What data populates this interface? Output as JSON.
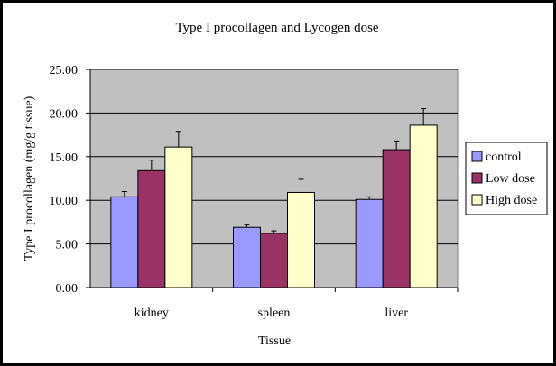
{
  "chart_data": {
    "type": "bar",
    "title": "Type I procollagen and Lycogen dose",
    "xlabel": "Tissue",
    "ylabel": "Type I procollagen (mg/g tissue)",
    "categories": [
      "kidney",
      "spleen",
      "liver"
    ],
    "ylim": [
      0,
      25
    ],
    "yticks": [
      "0.00",
      "5.00",
      "10.00",
      "15.00",
      "20.00",
      "25.00"
    ],
    "grid": true,
    "legend_position": "right",
    "series": [
      {
        "name": "control",
        "color": "#9999ff",
        "values": [
          10.4,
          6.9,
          10.1
        ],
        "errors": [
          0.6,
          0.3,
          0.3
        ]
      },
      {
        "name": "Low dose",
        "color": "#993366",
        "values": [
          13.4,
          6.2,
          15.8
        ],
        "errors": [
          1.2,
          0.3,
          1.0
        ]
      },
      {
        "name": "High dose",
        "color": "#ffffcc",
        "values": [
          16.1,
          10.9,
          18.6
        ],
        "errors": [
          1.8,
          1.5,
          1.9
        ]
      }
    ],
    "plot_background": "#c0c0c0"
  }
}
